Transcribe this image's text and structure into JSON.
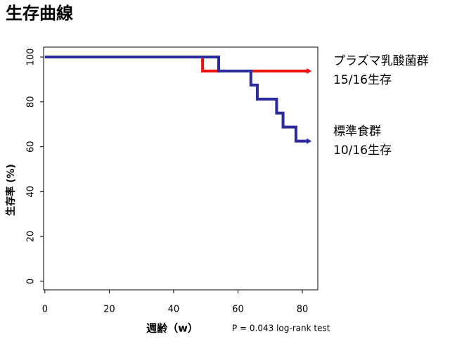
{
  "chart_data": {
    "type": "step",
    "title": "生存曲線",
    "x_label": "週齢（w）",
    "y_label": "生存率 (%)",
    "annotation": "P = 0.043 log-rank test",
    "xlim": [
      -0.4,
      84.8
    ],
    "ylim": [
      -3.8,
      104.4
    ],
    "xticks": [
      0,
      20,
      40,
      60,
      80
    ],
    "yticks": [
      0,
      20,
      40,
      60,
      80,
      100
    ],
    "series": [
      {
        "name": "プラズマ乳酸菌群",
        "note": "15/16生存",
        "color": "#ee1111",
        "x": [
          0,
          49,
          82
        ],
        "values": [
          100,
          93.75,
          93.75
        ]
      },
      {
        "name": "標準食群",
        "note": "10/16生存",
        "color": "#2b2b9e",
        "x": [
          0,
          54,
          64,
          66,
          72,
          74,
          78,
          82
        ],
        "values": [
          100,
          93.75,
          87.5,
          81.25,
          75,
          68.75,
          62.5,
          62.5
        ]
      }
    ]
  }
}
